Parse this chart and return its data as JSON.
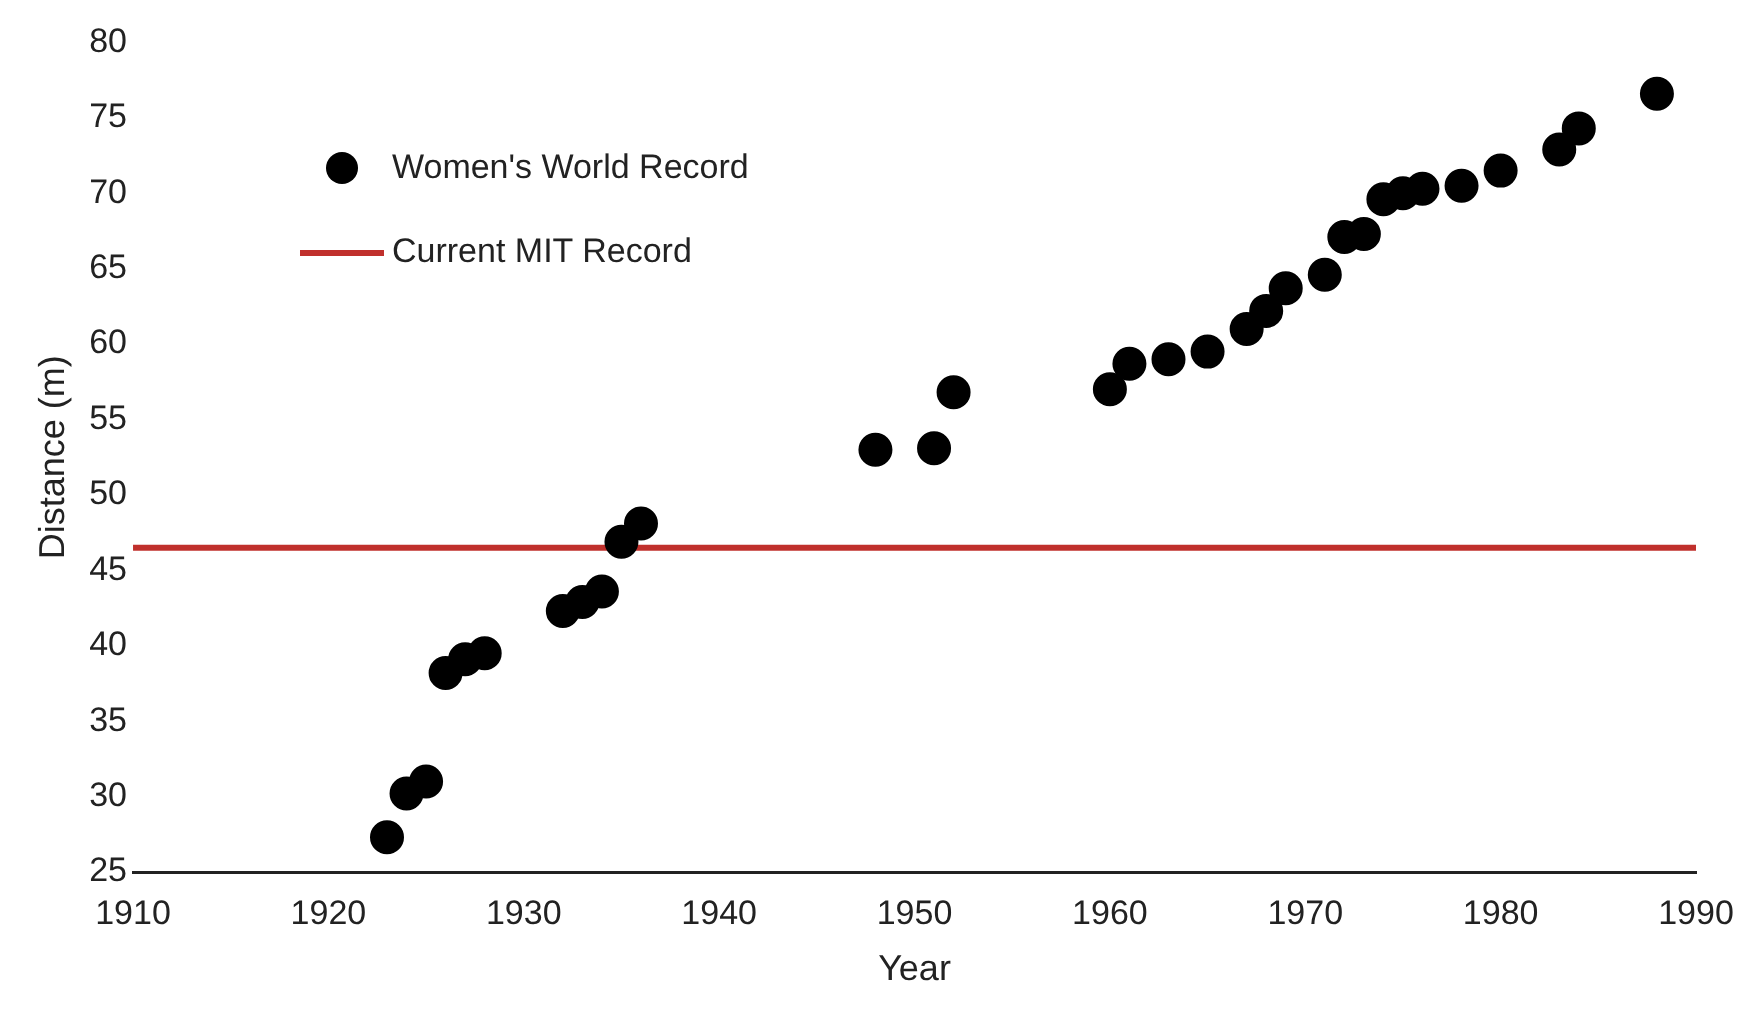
{
  "chart_data": {
    "type": "scatter",
    "xlabel": "Year",
    "ylabel": "Distance (m)",
    "xlim": [
      1910,
      1990
    ],
    "xticks": [
      1910,
      1920,
      1930,
      1940,
      1950,
      1960,
      1970,
      1980,
      1990
    ],
    "ylim": [
      25,
      80
    ],
    "yticks": [
      25,
      30,
      35,
      40,
      45,
      50,
      55,
      60,
      65,
      70,
      75,
      80
    ],
    "grid": false,
    "legend": "top left",
    "marker": "circle",
    "series": [
      {
        "name": "Women's World Record",
        "color": "#000000",
        "x": [
          1923,
          1924,
          1925,
          1926,
          1927,
          1928,
          1932,
          1933,
          1934,
          1935,
          1936,
          1948,
          1951,
          1952,
          1960,
          1961,
          1963,
          1965,
          1967,
          1968,
          1969,
          1971,
          1972,
          1973,
          1974,
          1975,
          1976,
          1978,
          1980,
          1983,
          1984,
          1988
        ],
        "values": [
          27.3,
          30.2,
          31.0,
          38.2,
          39.1,
          39.5,
          42.3,
          42.9,
          43.6,
          46.9,
          48.1,
          53.0,
          53.1,
          56.8,
          57.0,
          58.7,
          59.0,
          59.5,
          61.0,
          62.2,
          63.7,
          64.6,
          67.1,
          67.3,
          69.6,
          70.0,
          70.3,
          70.5,
          71.5,
          72.9,
          74.3,
          76.6
        ]
      },
      {
        "name": "Current MIT Record",
        "color": "#c0302c",
        "type": "line",
        "marker": "none",
        "x": [
          1910,
          1990
        ],
        "values": [
          46.5,
          46.5
        ]
      }
    ]
  }
}
